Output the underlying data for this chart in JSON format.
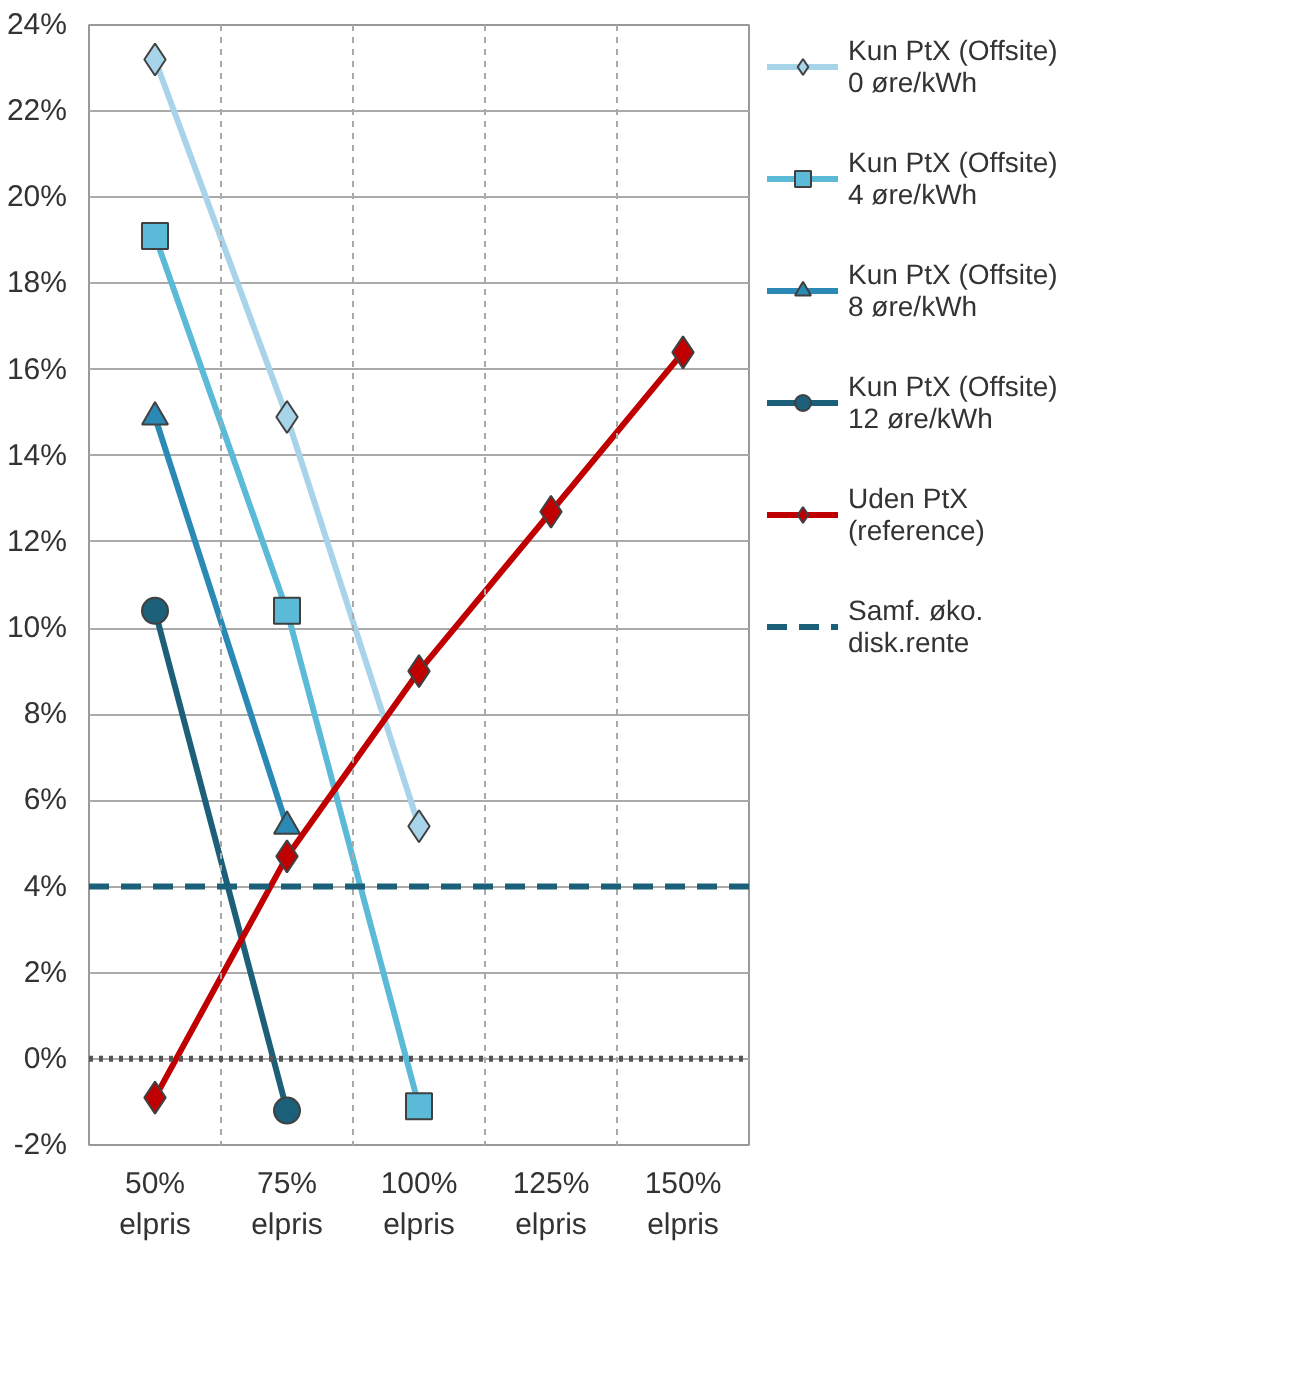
{
  "chart_data": {
    "type": "line",
    "categories": [
      "50%\nelpris",
      "75%\nelpris",
      "100%\nelpris",
      "125%\nelpris",
      "150%\nelpris"
    ],
    "series": [
      {
        "name": "Kun PtX (Offsite)\n0 øre/kWh",
        "color": "#a8d4ea",
        "marker": "diamond",
        "values": [
          23.2,
          14.9,
          5.4,
          null,
          null
        ]
      },
      {
        "name": "Kun PtX (Offsite)\n4 øre/kWh",
        "color": "#5bbad8",
        "marker": "square",
        "values": [
          19.1,
          10.4,
          -1.1,
          null,
          null
        ]
      },
      {
        "name": "Kun PtX (Offsite)\n8 øre/kWh",
        "color": "#2a8ab5",
        "marker": "triangle",
        "values": [
          14.9,
          5.4,
          null,
          null,
          null
        ]
      },
      {
        "name": "Kun PtX (Offsite)\n12 øre/kWh",
        "color": "#1c5f78",
        "marker": "circle",
        "values": [
          10.4,
          -1.2,
          null,
          null,
          null
        ]
      },
      {
        "name": "Uden PtX\n(reference)",
        "color": "#c00000",
        "marker": "diamond",
        "values": [
          -0.9,
          4.7,
          9.0,
          12.7,
          16.4
        ]
      }
    ],
    "ylim": [
      -2,
      24
    ],
    "yticks": [
      {
        "value": -2,
        "label": "-2%"
      },
      {
        "value": 0,
        "label": "0%"
      },
      {
        "value": 2,
        "label": "2%"
      },
      {
        "value": 4,
        "label": "4%"
      },
      {
        "value": 6,
        "label": "6%"
      },
      {
        "value": 8,
        "label": "8%"
      },
      {
        "value": 10,
        "label": "10%"
      },
      {
        "value": 12,
        "label": "12%"
      },
      {
        "value": 14,
        "label": "14%"
      },
      {
        "value": 16,
        "label": "16%"
      },
      {
        "value": 18,
        "label": "18%"
      },
      {
        "value": 20,
        "label": "20%"
      },
      {
        "value": 22,
        "label": "22%"
      },
      {
        "value": 24,
        "label": "24%"
      }
    ],
    "ref_lines": [
      {
        "axis": "y",
        "value": 4,
        "label": "Samf. øko.\ndisk.rente",
        "color": "#1c5f78",
        "line_style": "dashed"
      },
      {
        "axis": "y",
        "value": 0,
        "label": null,
        "color": "#555555",
        "line_style": "dotted"
      }
    ],
    "grid": true,
    "legend": "right"
  }
}
